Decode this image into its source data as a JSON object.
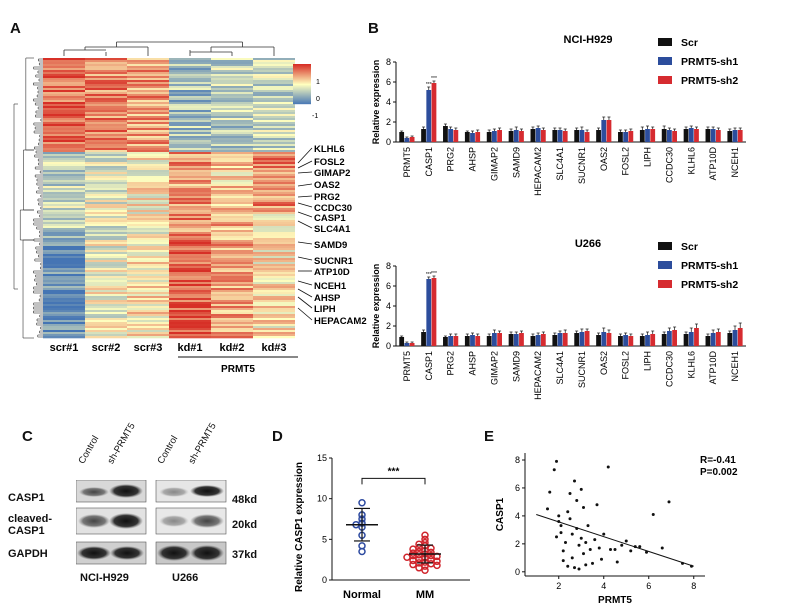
{
  "panels": {
    "A": {
      "label": "A",
      "columns": [
        "scr#1",
        "scr#2",
        "scr#3",
        "kd#1",
        "kd#2",
        "kd#3"
      ],
      "group_label": "PRMT5",
      "scale_ticks": [
        "1",
        "0",
        "-1"
      ],
      "colors": {
        "high": "#d73027",
        "mid": "#ffffbf",
        "low": "#4575b4"
      },
      "gene_labels": [
        "KLHL6",
        "FOSL2",
        "GIMAP2",
        "OAS2",
        "PRG2",
        "CCDC30",
        "CASP1",
        "SLC4A1",
        "SAMD9",
        "SUCNR1",
        "ATP10D",
        "NCEH1",
        "AHSP",
        "LIPH",
        "HEPACAM2"
      ]
    },
    "B": {
      "label": "B",
      "legend": [
        "Scr",
        "PRMT5-sh1",
        "PRMT5-sh2"
      ],
      "colors": [
        "#111111",
        "#2c4d9c",
        "#d62b30"
      ],
      "star_text": "***"
    },
    "C": {
      "label": "C",
      "lane_labels": [
        "Control",
        "sh-PRMT5"
      ],
      "rows": [
        {
          "name": "CASP1",
          "kd": "48kd"
        },
        {
          "name": "cleaved-\nCASP1",
          "kd": "20kd"
        },
        {
          "name": "GAPDH",
          "kd": "37kd"
        }
      ],
      "cells": [
        "NCI-H929",
        "U266"
      ]
    },
    "D": {
      "label": "D",
      "ylabel": "Relative CASP1 expression",
      "groups": [
        "Normal",
        "MM"
      ],
      "star_text": "***"
    },
    "E": {
      "label": "E",
      "r_text": "R=-0.41",
      "p_text": "P=0.002"
    }
  },
  "chart_data": [
    {
      "type": "bar",
      "title": "NCI-H929",
      "ylabel": "Relative expression",
      "ylim": [
        0,
        8
      ],
      "yticks": [
        0,
        2,
        4,
        6,
        8
      ],
      "categories": [
        "PRMT5",
        "CASP1",
        "PRG2",
        "AHSP",
        "GIMAP2",
        "SAMD9",
        "HEPACAM2",
        "SLC4A1",
        "SUCNR1",
        "OAS2",
        "FOSL2",
        "LIPH",
        "CCDC30",
        "KLHL6",
        "ATP10D",
        "NCEH1"
      ],
      "series": [
        {
          "name": "Scr",
          "values": [
            1.0,
            1.3,
            1.6,
            1.0,
            1.0,
            1.1,
            1.3,
            1.2,
            1.2,
            1.2,
            1.0,
            1.2,
            1.3,
            1.3,
            1.3,
            1.1
          ]
        },
        {
          "name": "PRMT5-sh1",
          "values": [
            0.4,
            5.2,
            1.3,
            0.9,
            1.1,
            1.2,
            1.4,
            1.2,
            1.2,
            2.2,
            1.0,
            1.3,
            1.2,
            1.4,
            1.3,
            1.2
          ]
        },
        {
          "name": "PRMT5-sh2",
          "values": [
            0.5,
            5.9,
            1.2,
            1.0,
            1.2,
            1.1,
            1.2,
            1.1,
            1.0,
            2.2,
            1.1,
            1.3,
            1.1,
            1.3,
            1.2,
            1.2
          ]
        }
      ],
      "errors": [
        [
          0.1,
          0.2,
          0.2,
          0.1,
          0.2,
          0.2,
          0.2,
          0.2,
          0.2,
          0.2,
          0.2,
          0.3,
          0.3,
          0.2,
          0.2,
          0.2
        ],
        [
          0.1,
          0.3,
          0.2,
          0.2,
          0.2,
          0.3,
          0.2,
          0.2,
          0.3,
          0.3,
          0.2,
          0.3,
          0.2,
          0.2,
          0.2,
          0.2
        ],
        [
          0.1,
          0.2,
          0.2,
          0.2,
          0.2,
          0.2,
          0.2,
          0.2,
          0.2,
          0.3,
          0.2,
          0.2,
          0.2,
          0.2,
          0.2,
          0.2
        ]
      ]
    },
    {
      "type": "bar",
      "title": "U266",
      "ylabel": "Relative expression",
      "ylim": [
        0,
        8
      ],
      "yticks": [
        0,
        2,
        4,
        6,
        8
      ],
      "categories": [
        "PRMT5",
        "CASP1",
        "PRG2",
        "AHSP",
        "GIMAP2",
        "SAMD9",
        "HEPACAM2",
        "SLC4A1",
        "SUCNR1",
        "OAS2",
        "FOSL2",
        "LIPH",
        "CCDC30",
        "KLHL6",
        "ATP10D",
        "NCEH1"
      ],
      "series": [
        {
          "name": "Scr",
          "values": [
            0.9,
            1.4,
            0.9,
            1.0,
            1.0,
            1.2,
            1.0,
            1.1,
            1.3,
            1.1,
            1.0,
            1.0,
            1.2,
            1.2,
            1.0,
            1.3
          ]
        },
        {
          "name": "PRMT5-sh1",
          "values": [
            0.3,
            6.7,
            1.0,
            1.1,
            1.3,
            1.2,
            1.1,
            1.3,
            1.4,
            1.4,
            1.1,
            1.1,
            1.5,
            1.4,
            1.3,
            1.6
          ]
        },
        {
          "name": "PRMT5-sh2",
          "values": [
            0.3,
            6.8,
            1.0,
            1.0,
            1.3,
            1.3,
            1.2,
            1.3,
            1.5,
            1.3,
            1.0,
            1.2,
            1.6,
            1.8,
            1.4,
            1.8
          ]
        }
      ],
      "errors": [
        [
          0.1,
          0.2,
          0.1,
          0.2,
          0.2,
          0.2,
          0.2,
          0.2,
          0.2,
          0.2,
          0.2,
          0.2,
          0.2,
          0.2,
          0.2,
          0.2
        ],
        [
          0.1,
          0.2,
          0.2,
          0.2,
          0.3,
          0.2,
          0.2,
          0.2,
          0.3,
          0.4,
          0.2,
          0.3,
          0.3,
          0.4,
          0.3,
          0.4
        ],
        [
          0.1,
          0.2,
          0.2,
          0.2,
          0.2,
          0.2,
          0.2,
          0.3,
          0.2,
          0.3,
          0.2,
          0.3,
          0.3,
          0.4,
          0.3,
          0.5
        ]
      ]
    },
    {
      "type": "scatter",
      "ylabel": "Relative CASP1 expression",
      "categories": [
        "Normal",
        "MM"
      ],
      "ylim": [
        0,
        15
      ],
      "yticks": [
        0,
        5,
        10,
        15
      ],
      "normal": [
        9.5,
        8.0,
        7.5,
        7.0,
        6.8,
        6.5,
        5.5,
        4.2,
        3.5
      ],
      "mm": [
        5.5,
        5.0,
        4.6,
        4.4,
        4.2,
        4.0,
        3.9,
        3.8,
        3.6,
        3.5,
        3.4,
        3.3,
        3.2,
        3.1,
        3.0,
        3.0,
        2.9,
        2.8,
        2.7,
        2.6,
        2.5,
        2.4,
        2.3,
        2.2,
        2.1,
        2.0,
        1.9,
        1.8,
        1.7,
        1.5,
        1.2
      ],
      "normal_mean": 6.8,
      "normal_sd": 2.0,
      "mm_mean": 3.2,
      "mm_sd": 1.1
    },
    {
      "type": "scatter",
      "xlabel": "PRMT5",
      "ylabel": "CASP1",
      "xlim": [
        0.5,
        8.5
      ],
      "ylim": [
        -0.3,
        8.5
      ],
      "xticks": [
        2,
        4,
        6,
        8
      ],
      "yticks": [
        0,
        2,
        4,
        6,
        8
      ],
      "points": [
        [
          1.5,
          4.5
        ],
        [
          1.6,
          5.7
        ],
        [
          1.8,
          7.3
        ],
        [
          1.9,
          7.9
        ],
        [
          1.9,
          2.5
        ],
        [
          2.0,
          4.0
        ],
        [
          2.0,
          3.6
        ],
        [
          2.1,
          3.3
        ],
        [
          2.1,
          2.8
        ],
        [
          2.2,
          0.8
        ],
        [
          2.2,
          1.5
        ],
        [
          2.3,
          2.1
        ],
        [
          2.4,
          0.4
        ],
        [
          2.4,
          4.3
        ],
        [
          2.5,
          5.6
        ],
        [
          2.5,
          3.8
        ],
        [
          2.6,
          2.7
        ],
        [
          2.6,
          1.0
        ],
        [
          2.7,
          6.5
        ],
        [
          2.7,
          0.3
        ],
        [
          2.8,
          5.1
        ],
        [
          2.8,
          3.1
        ],
        [
          2.9,
          1.9
        ],
        [
          2.9,
          0.2
        ],
        [
          3.0,
          2.4
        ],
        [
          3.0,
          5.9
        ],
        [
          3.1,
          4.6
        ],
        [
          3.1,
          1.3
        ],
        [
          3.2,
          2.1
        ],
        [
          3.2,
          0.5
        ],
        [
          3.3,
          3.3
        ],
        [
          3.4,
          1.6
        ],
        [
          3.5,
          0.6
        ],
        [
          3.6,
          2.3
        ],
        [
          3.7,
          4.8
        ],
        [
          3.8,
          1.7
        ],
        [
          3.9,
          0.9
        ],
        [
          4.0,
          2.7
        ],
        [
          4.2,
          7.5
        ],
        [
          4.3,
          1.6
        ],
        [
          4.5,
          1.6
        ],
        [
          4.6,
          0.7
        ],
        [
          4.8,
          1.9
        ],
        [
          5.0,
          2.2
        ],
        [
          5.2,
          1.5
        ],
        [
          5.4,
          1.8
        ],
        [
          5.6,
          1.8
        ],
        [
          5.9,
          1.4
        ],
        [
          6.2,
          4.1
        ],
        [
          6.6,
          1.7
        ],
        [
          6.9,
          5.0
        ],
        [
          7.5,
          0.6
        ],
        [
          7.9,
          0.4
        ]
      ],
      "fit": [
        [
          1.0,
          4.1
        ],
        [
          8.0,
          0.4
        ]
      ]
    }
  ]
}
